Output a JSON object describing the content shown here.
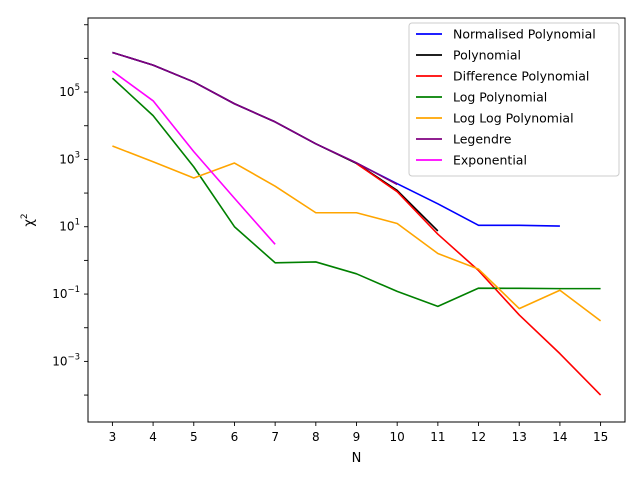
{
  "chart_data": {
    "type": "line",
    "xlabel": "N",
    "ylabel_base": "χ",
    "ylabel_sup": "2",
    "yscale": "log",
    "xlim": [
      2.4,
      15.6
    ],
    "ylim_log10": [
      -4.8,
      7.2
    ],
    "x_ticks": [
      3,
      4,
      5,
      6,
      7,
      8,
      9,
      10,
      11,
      12,
      13,
      14,
      15
    ],
    "y_ticks": [
      {
        "exp": -3,
        "base": "10",
        "sup": "−3"
      },
      {
        "exp": -1,
        "base": "10",
        "sup": "−1"
      },
      {
        "exp": 1,
        "base": "10",
        "sup": "1"
      },
      {
        "exp": 3,
        "base": "10",
        "sup": "3"
      },
      {
        "exp": 5,
        "base": "10",
        "sup": "5"
      }
    ],
    "legend_position": "top-right",
    "grid": false,
    "series": [
      {
        "name": "Normalised Polynomial",
        "color": "#0000ff",
        "x": [
          3,
          4,
          5,
          6,
          7,
          8,
          9,
          10,
          11,
          12,
          13,
          14
        ],
        "y": [
          1500000,
          630000,
          200000,
          45000,
          13000,
          2900,
          780,
          190,
          48,
          11,
          11,
          10.5
        ]
      },
      {
        "name": "Polynomial",
        "color": "#000000",
        "x": [
          3,
          4,
          5,
          6,
          7,
          8,
          9,
          10,
          11
        ],
        "y": [
          1500000,
          630000,
          200000,
          45000,
          13000,
          2900,
          760,
          120,
          7.5
        ]
      },
      {
        "name": "Difference Polynomial",
        "color": "#ff0000",
        "x": [
          9,
          10,
          11,
          12,
          13,
          14,
          15
        ],
        "y": [
          750,
          110,
          6,
          0.5,
          0.024,
          0.0017,
          0.0001
        ]
      },
      {
        "name": "Log Polynomial",
        "color": "#008000",
        "x": [
          3,
          4,
          5,
          6,
          7,
          8,
          9,
          10,
          11,
          12,
          13,
          14,
          15
        ],
        "y": [
          260000,
          20000,
          600,
          10,
          0.85,
          0.9,
          0.4,
          0.12,
          0.043,
          0.15,
          0.148,
          0.145,
          0.145
        ]
      },
      {
        "name": "Log Log Polynomial",
        "color": "#ffa500",
        "x": [
          3,
          4,
          5,
          6,
          7,
          8,
          9,
          10,
          11,
          12,
          13,
          14,
          15
        ],
        "y": [
          2500,
          850,
          280,
          780,
          160,
          26,
          26,
          12.5,
          1.6,
          0.55,
          0.037,
          0.13,
          0.016
        ]
      },
      {
        "name": "Legendre",
        "color": "#800080",
        "x": [
          3,
          4,
          5,
          6,
          7,
          8,
          9,
          10
        ],
        "y": [
          1500000,
          630000,
          200000,
          45000,
          13000,
          2900,
          790,
          180
        ]
      },
      {
        "name": "Exponential",
        "color": "#ff00ff",
        "x": [
          3,
          4,
          5,
          6,
          7
        ],
        "y": [
          420000,
          55000,
          1700,
          70,
          3
        ]
      }
    ]
  }
}
